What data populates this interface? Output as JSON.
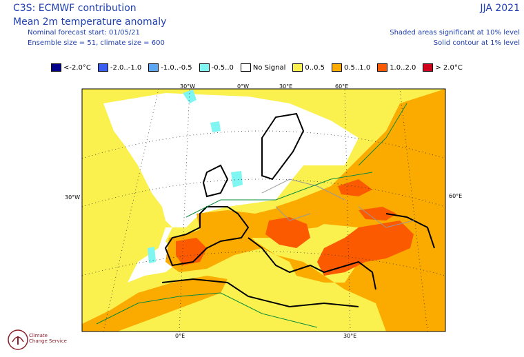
{
  "header": {
    "title": "C3S: ECMWF contribution",
    "subtitle": "Mean 2m temperature anomaly",
    "forecast_start": "Nominal forecast start: 01/05/21",
    "ensemble": "Ensemble size = 51, climate size = 600",
    "season": "JJA 2021",
    "shading_note": "Shaded areas significant at 10% level",
    "contour_note": "Solid contour at 1% level"
  },
  "legend": [
    {
      "label": "<-2.0°C",
      "color": "#00008b"
    },
    {
      "label": "-2.0..-1.0",
      "color": "#3a5ff0"
    },
    {
      "label": "-1.0..-0.5",
      "color": "#59a6f5"
    },
    {
      "label": "-0.5..0",
      "color": "#7ff6f2"
    },
    {
      "label": "No Signal",
      "color": "#ffffff"
    },
    {
      "label": "0..0.5",
      "color": "#faf14e"
    },
    {
      "label": "0.5..1.0",
      "color": "#fbaa00"
    },
    {
      "label": "1.0..2.0",
      "color": "#fb5a00"
    },
    {
      "label": "> 2.0°C",
      "color": "#d0021b"
    }
  ],
  "axes": {
    "top_labels": [
      "30°W",
      "0°W",
      "30°E",
      "60°E"
    ],
    "bottom_labels": [
      "0°E",
      "30°E"
    ],
    "left_label": "30°W",
    "right_label": "60°E"
  },
  "logo": {
    "line1": "Climate",
    "line2": "Change Service"
  }
}
